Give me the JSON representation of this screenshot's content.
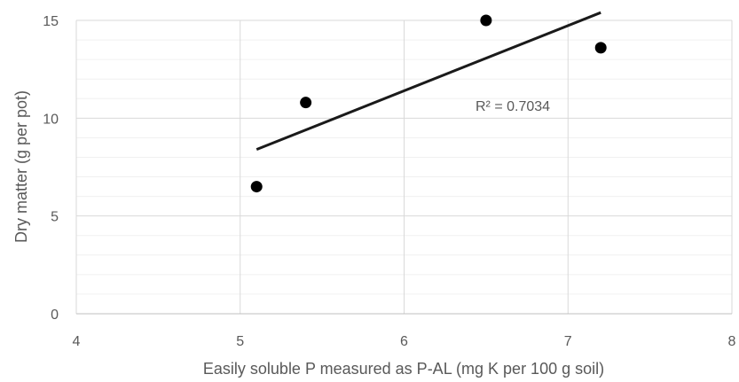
{
  "chart_data": {
    "type": "scatter",
    "title": "",
    "xlabel": "Easily soluble P measured as P-AL (mg K per 100 g soil)",
    "ylabel": "Dry matter (g per pot)",
    "xlim": [
      4,
      8
    ],
    "ylim": [
      0,
      15
    ],
    "x_ticks": [
      "4",
      "5",
      "6",
      "7",
      "8"
    ],
    "y_ticks": [
      "0",
      "5",
      "10",
      "15"
    ],
    "x_tick_values": [
      4,
      5,
      6,
      7,
      8
    ],
    "y_tick_values": [
      0,
      5,
      10,
      15
    ],
    "y_minor_step": 1,
    "grid": true,
    "legend": "none",
    "points": [
      {
        "x": 5.1,
        "y": 6.5
      },
      {
        "x": 5.4,
        "y": 10.8
      },
      {
        "x": 6.5,
        "y": 15.0
      },
      {
        "x": 7.2,
        "y": 13.6
      }
    ],
    "trendline": {
      "x_start": 5.1,
      "y_start": 8.4,
      "x_end": 7.2,
      "y_end": 15.4
    },
    "annotation": "R² = 0.7034",
    "colors": {
      "points": "#000000",
      "trendline": "#1a1a1a",
      "grid": "#d9d9d9",
      "text": "#595959"
    }
  }
}
